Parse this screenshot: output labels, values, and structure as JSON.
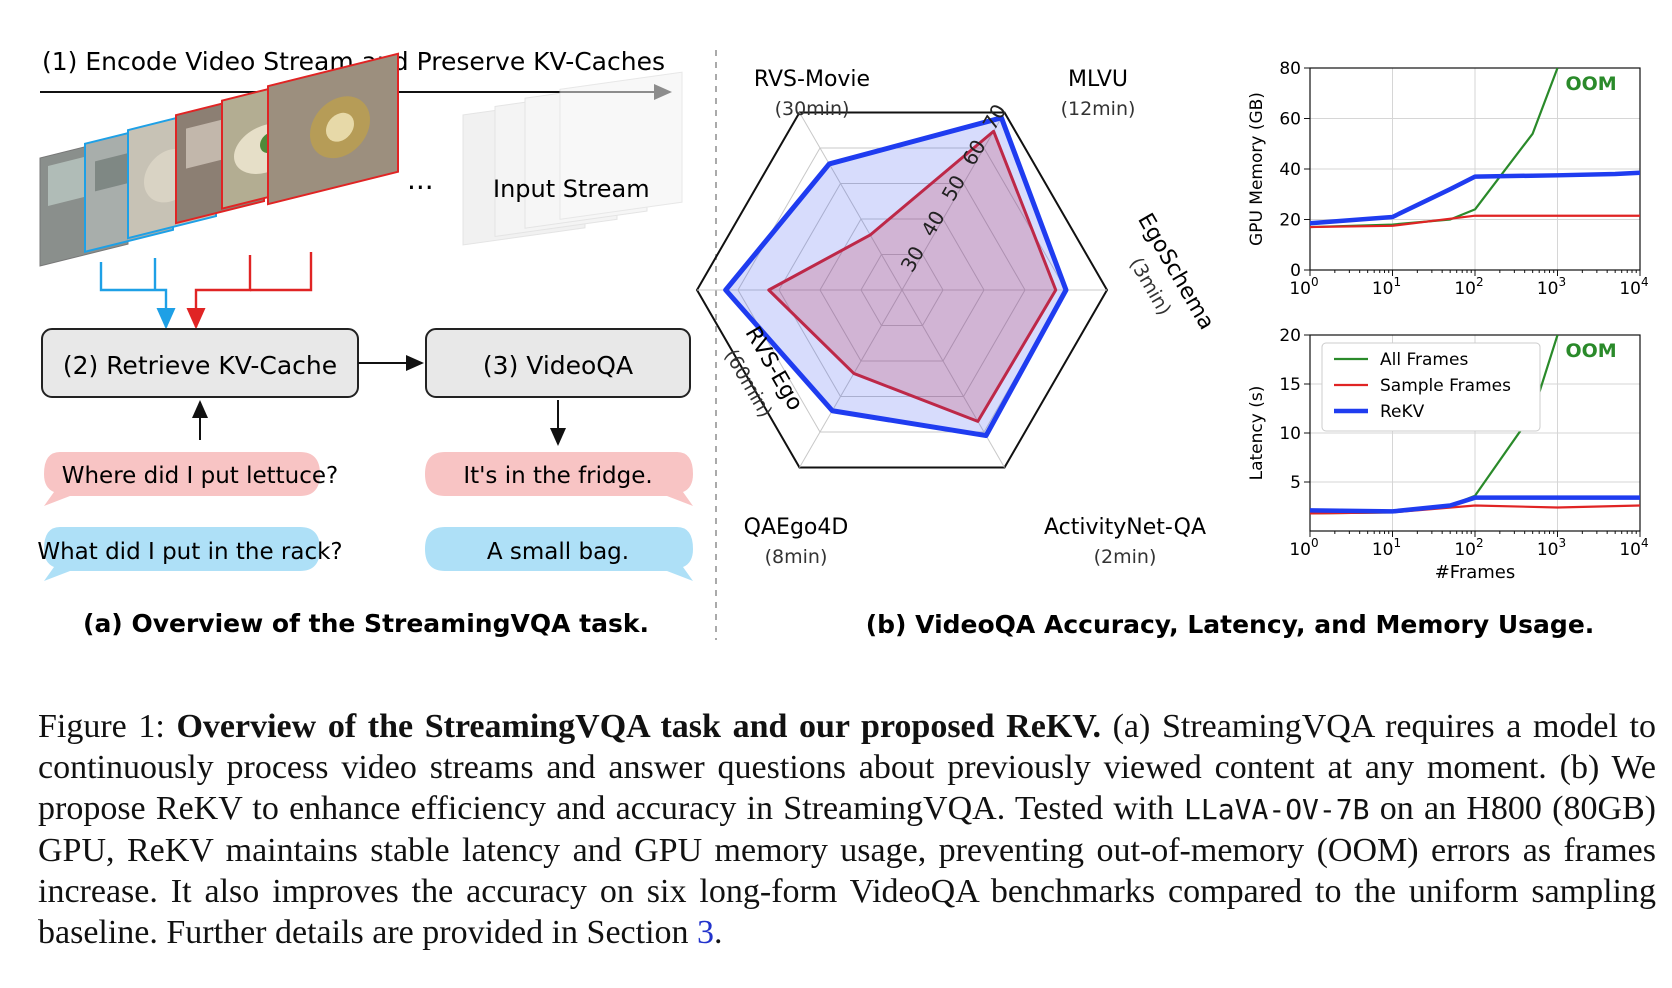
{
  "panel_a": {
    "step1": "(1) Encode Video Stream and Preserve KV-Caches",
    "ellipsis": "···",
    "input_stream": "Input Stream",
    "step2": "(2) Retrieve KV-Cache",
    "step3": "(3) VideoQA",
    "question1": "Where did I put lettuce?",
    "question2": "What did I put in the rack?",
    "answer1": "It's in the fridge.",
    "answer2": "A small bag.",
    "caption": "(a) Overview of the StreamingVQA task."
  },
  "panel_b_caption": "(b) VideoQA Accuracy, Latency, and Memory Usage.",
  "colors": {
    "all_frames": "#2a8a2a",
    "sample_frames": "#e02424",
    "rekv": "#1f3cf0",
    "oom": "#2a8a2a",
    "pink_bubble": "#f8c4c4",
    "blue_bubble": "#aee0f7",
    "box": "#e8e8e8"
  },
  "chart_data": [
    {
      "type": "radar",
      "axes": [
        {
          "name": "MLVU",
          "duration": "(12min)"
        },
        {
          "name": "EgoSchema",
          "duration": "(3min)"
        },
        {
          "name": "ActivityNet-QA",
          "duration": "(2min)"
        },
        {
          "name": "QAEgo4D",
          "duration": "(8min)"
        },
        {
          "name": "RVS-Ego",
          "duration": "(60min)"
        },
        {
          "name": "RVS-Movie",
          "duration": "(30min)"
        }
      ],
      "ticks": [
        "30",
        "40",
        "50",
        "60",
        "70"
      ],
      "range": [
        20,
        70
      ],
      "series": [
        {
          "name": "Sample Frames",
          "values": [
            64.7,
            57.5,
            57.0,
            43.5,
            52.5,
            35.5
          ]
        },
        {
          "name": "ReKV",
          "values": [
            68.5,
            60.0,
            61.0,
            54.0,
            63.0,
            55.5
          ]
        }
      ]
    },
    {
      "type": "line",
      "xscale": "log",
      "xlim": [
        1,
        10000
      ],
      "xticks": [
        "10^0",
        "10^1",
        "10^2",
        "10^3",
        "10^4"
      ],
      "ylabel": "GPU Memory (GB)",
      "ylim": [
        0,
        80
      ],
      "yticks": [
        "0",
        "20",
        "40",
        "60",
        "80"
      ],
      "annotation": "OOM",
      "series": [
        {
          "name": "All Frames",
          "x": [
            1,
            10,
            50,
            100,
            500,
            1000
          ],
          "y": [
            17,
            18,
            20,
            24,
            54,
            80
          ]
        },
        {
          "name": "Sample Frames",
          "x": [
            1,
            10,
            100,
            1000,
            10000
          ],
          "y": [
            17,
            17.5,
            21.5,
            21.5,
            21.5
          ]
        },
        {
          "name": "ReKV",
          "x": [
            1,
            10,
            50,
            100,
            1000,
            5000,
            10000
          ],
          "y": [
            18.5,
            21,
            32,
            37,
            37.5,
            38,
            38.5
          ]
        }
      ]
    },
    {
      "type": "line",
      "xscale": "log",
      "xlim": [
        1,
        10000
      ],
      "xticks": [
        "10^0",
        "10^1",
        "10^2",
        "10^3",
        "10^4"
      ],
      "xlabel": "#Frames",
      "ylabel": "Latency (s)",
      "ylim": [
        0,
        20
      ],
      "yticks": [
        "5",
        "10",
        "15",
        "20"
      ],
      "annotation": "OOM",
      "legend": "top-left",
      "series": [
        {
          "name": "All Frames",
          "x": [
            1,
            10,
            50,
            100,
            500,
            1000
          ],
          "y": [
            1.8,
            1.9,
            2.6,
            3.6,
            12,
            20
          ]
        },
        {
          "name": "Sample Frames",
          "x": [
            1,
            10,
            100,
            1000,
            10000
          ],
          "y": [
            1.8,
            1.9,
            2.6,
            2.4,
            2.6
          ]
        },
        {
          "name": "ReKV",
          "x": [
            1,
            10,
            50,
            100,
            1000,
            10000
          ],
          "y": [
            2.1,
            2.0,
            2.6,
            3.4,
            3.4,
            3.4
          ]
        }
      ]
    }
  ],
  "caption": {
    "label": "Figure 1:",
    "bold": "Overview of the StreamingVQA task and our proposed ReKV.",
    "t1": "(a) StreamingVQA requires a model to continuously process video streams and answer questions about previously viewed content at any moment. (b) We propose ReKV to enhance efficiency and accuracy in StreamingVQA. Tested with",
    "model": "LLaVA-OV-7B",
    "t2": "on an H800 (80GB) GPU, ReKV maintains stable latency and GPU memory usage, preventing out-of-memory (OOM) errors as frames increase. It also improves the accuracy on six long-form VideoQA benchmarks compared to the uniform sampling baseline. Further details are provided in Section",
    "section": "3",
    "end": "."
  }
}
